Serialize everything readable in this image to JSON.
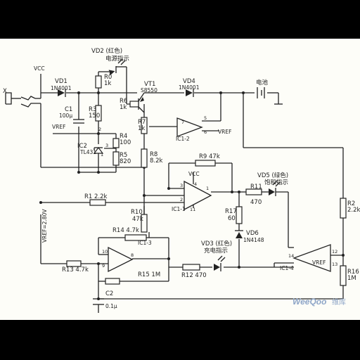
{
  "labels": {
    "input_x": "X",
    "vcc_top": "Vₙ₀",
    "vcc_text": "VCC",
    "vref": "VREF",
    "vref_eq": "VREF=2.80V",
    "vd1": "VD1",
    "vd1_type": "1N4001",
    "vd2": "VD2 (红色)",
    "vd2_desc": "电源指示",
    "r0": "R0",
    "r0_val": "1k",
    "vt1": "VT1",
    "vt1_type": "S8550",
    "vd4": "VD4",
    "vd4_type": "1N4001",
    "battery": "电池",
    "c1": "C1",
    "c1_val": "100μ",
    "r3": "R3",
    "r3_val": "150",
    "r6": "R6",
    "r6_val": "1k",
    "r7": "R7",
    "r7_val": "1k",
    "r4": "R4",
    "r4_val": "100",
    "ic2": "IC2",
    "ic2_type": "TL431",
    "r5": "R5",
    "r5_val": "820",
    "r8": "R8",
    "r8_val": "8.2k",
    "ic1_2": "IC1-2",
    "r9": "R9 47k",
    "vd5": "VD5 (绿色)",
    "vd5_desc": "饱和指示",
    "r1": "R1 2.2k",
    "ic1_1": "IC1-1",
    "r11": "R11",
    "r11_val": "470",
    "r2": "R2",
    "r2_val": "2.2k",
    "r10": "R10",
    "r10_val": "47k",
    "r17": "R17",
    "r17_val": "60",
    "r14": "R14 4.7k",
    "ic1_3": "IC1-3",
    "vd6": "VD6",
    "vd6_type": "1N4148",
    "vd3": "VD3 (红色)",
    "vd3_desc": "充电指示",
    "r13": "R13 4.7k",
    "r12": "R12 470",
    "ic1_4": "IC1-4",
    "r15": "R15 1M",
    "r16": "R16",
    "r16_val": "1M",
    "c2": "C2",
    "c2_val": "0.1μ",
    "pin1": "1",
    "pin2": "2",
    "pin3": "3",
    "pin4": "4",
    "pin5": "5",
    "pin6": "6",
    "pin7": "7",
    "pin8": "8",
    "pin9": "9",
    "pin10": "10",
    "pin11": "11",
    "pin12": "12",
    "pin13": "13",
    "pin14": "14"
  },
  "watermark": {
    "brand": "WeeQoo",
    "cn": "维库"
  }
}
